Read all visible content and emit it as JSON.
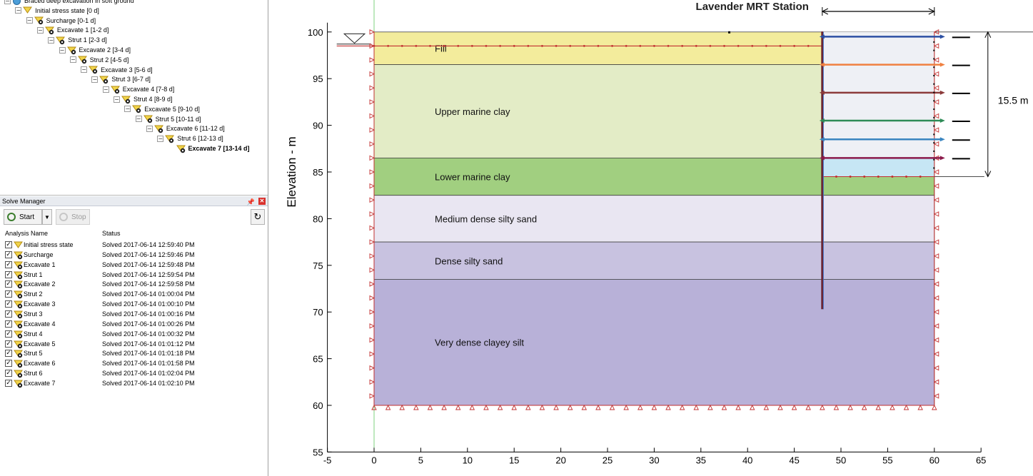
{
  "tree": {
    "root_label": "Braced deep excavation in soft ground",
    "nodes": [
      "Initial stress state [0 d]",
      "Surcharge [0-1 d]",
      "Excavate 1 [1-2 d]",
      "Strut 1 [2-3 d]",
      "Excavate 2 [3-4 d]",
      "Strut 2 [4-5 d]",
      "Excavate 3 [5-6 d]",
      "Strut 3 [6-7 d]",
      "Excavate 4 [7-8 d]",
      "Strut 4 [8-9 d]",
      "Excavate 5 [9-10 d]",
      "Strut 5 [10-11 d]",
      "Excavate 6 [11-12 d]",
      "Strut 6 [12-13 d]",
      "Excavate 7 [13-14 d]"
    ],
    "selected": "Excavate 7 [13-14 d]"
  },
  "solve_manager": {
    "title": "Solve Manager",
    "pin_icon": "pin-icon",
    "close_icon": "close-icon",
    "start_label": "Start",
    "stop_label": "Stop",
    "col_name": "Analysis Name",
    "col_status": "Status",
    "rows": [
      {
        "name": "Initial stress state",
        "status": "Solved 2017-06-14 12:59:40 PM"
      },
      {
        "name": "Surcharge",
        "status": "Solved 2017-06-14 12:59:46 PM"
      },
      {
        "name": "Excavate 1",
        "status": "Solved 2017-06-14 12:59:48 PM"
      },
      {
        "name": "Strut 1",
        "status": "Solved 2017-06-14 12:59:54 PM"
      },
      {
        "name": "Excavate 2",
        "status": "Solved 2017-06-14 12:59:58 PM"
      },
      {
        "name": "Strut 2",
        "status": "Solved 2017-06-14 01:00:04 PM"
      },
      {
        "name": "Excavate 3",
        "status": "Solved 2017-06-14 01:00:10 PM"
      },
      {
        "name": "Strut 3",
        "status": "Solved 2017-06-14 01:00:16 PM"
      },
      {
        "name": "Excavate 4",
        "status": "Solved 2017-06-14 01:00:26 PM"
      },
      {
        "name": "Strut 4",
        "status": "Solved 2017-06-14 01:00:32 PM"
      },
      {
        "name": "Excavate 5",
        "status": "Solved 2017-06-14 01:01:12 PM"
      },
      {
        "name": "Strut 5",
        "status": "Solved 2017-06-14 01:01:18 PM"
      },
      {
        "name": "Excavate 6",
        "status": "Solved 2017-06-14 01:01:58 PM"
      },
      {
        "name": "Strut 6",
        "status": "Solved 2017-06-14 01:02:04 PM"
      },
      {
        "name": "Excavate 7",
        "status": "Solved 2017-06-14 01:02:10 PM"
      }
    ]
  },
  "model": {
    "title": "Lavender MRT Station",
    "ylabel": "Elevation - m",
    "depth_label": "15.5 m",
    "x_ticks": [
      -5,
      0,
      5,
      10,
      15,
      20,
      25,
      30,
      35,
      40,
      45,
      50,
      55,
      60,
      65
    ],
    "y_ticks": [
      55,
      60,
      65,
      70,
      75,
      80,
      85,
      90,
      95,
      100
    ],
    "xlim": [
      -5,
      65
    ],
    "ylim": [
      55,
      101
    ],
    "layers": [
      {
        "name": "Fill",
        "top": 100,
        "bottom": 96.5,
        "color": "#f3ec9c"
      },
      {
        "name": "Upper marine clay",
        "top": 96.5,
        "bottom": 86.5,
        "color": "#e3ecc6"
      },
      {
        "name": "Lower marine clay",
        "top": 86.5,
        "bottom": 82.5,
        "color": "#a1cf80"
      },
      {
        "name": "Medium dense silty sand",
        "top": 82.5,
        "bottom": 77.5,
        "color": "#e9e6f2"
      },
      {
        "name": "Dense silty sand",
        "top": 77.5,
        "bottom": 73.5,
        "color": "#c8c2e0"
      },
      {
        "name": "Very dense clayey silt",
        "top": 73.5,
        "bottom": 60,
        "color": "#b8b1d8"
      }
    ],
    "water_table": 98.5,
    "wall_x": 48,
    "wall_bottom": 70.3,
    "right_boundary": 60,
    "excavation_bottom": 84.5,
    "struts": [
      {
        "elevation": 99.5,
        "color": "#2c4fa3"
      },
      {
        "elevation": 96.5,
        "color": "#f08040"
      },
      {
        "elevation": 93.5,
        "color": "#8b3a3a"
      },
      {
        "elevation": 90.5,
        "color": "#2e8b57"
      },
      {
        "elevation": 88.5,
        "color": "#3a85c0"
      },
      {
        "elevation": 86.5,
        "color": "#8b1a4a"
      }
    ]
  }
}
